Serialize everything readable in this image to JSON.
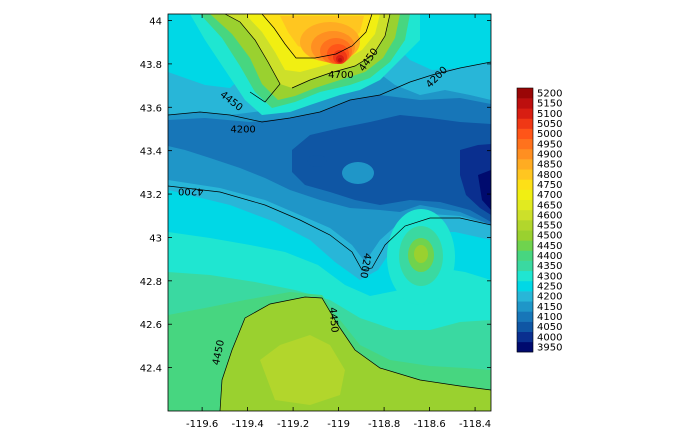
{
  "chart_data": {
    "type": "heatmap",
    "subtype": "filled-contour-map",
    "title": "",
    "xlabel": "",
    "ylabel": "",
    "xlim": [
      -119.75,
      -118.33
    ],
    "ylim": [
      42.2,
      44.03
    ],
    "x_ticks": [
      "-119.6",
      "-119.4",
      "-119.2",
      "-119",
      "-118.8",
      "-118.6",
      "-118.4"
    ],
    "y_ticks": [
      "44",
      "43.8",
      "43.6",
      "43.4",
      "43.2",
      "43",
      "42.8",
      "42.6",
      "42.4"
    ],
    "colorbar": {
      "placement": "right",
      "levels": [
        "3950",
        "4000",
        "4050",
        "4100",
        "4150",
        "4200",
        "4250",
        "4300",
        "4350",
        "4400",
        "4450",
        "4500",
        "4550",
        "4600",
        "4650",
        "4700",
        "4750",
        "4800",
        "4850",
        "4900",
        "4950",
        "5000",
        "5050",
        "5100",
        "5150",
        "5200"
      ],
      "colors": [
        "#000a6e",
        "#0a2f8f",
        "#0f56a4",
        "#1776b8",
        "#1f96c8",
        "#28b6d8",
        "#00d8e6",
        "#1fe6d1",
        "#3ad9a1",
        "#47d680",
        "#6fd34e",
        "#9ad12f",
        "#b2d62c",
        "#cde02a",
        "#e1ea20",
        "#f1ef12",
        "#fde017",
        "#ffc620",
        "#ffac22",
        "#ff8f21",
        "#ff721d",
        "#ff5518",
        "#f03815",
        "#d81e12",
        "#bd0f0e",
        "#9a0606"
      ]
    },
    "contour_labels": [
      {
        "text": "4700",
        "lon": -118.99,
        "lat": 43.75,
        "rotation": 0
      },
      {
        "text": "4450",
        "lon": -118.87,
        "lat": 43.82,
        "rotation": -55
      },
      {
        "text": "4200",
        "lon": -118.57,
        "lat": 43.74,
        "rotation": -45
      },
      {
        "text": "4450",
        "lon": -119.47,
        "lat": 43.63,
        "rotation": 38
      },
      {
        "text": "4200",
        "lon": -119.42,
        "lat": 43.5,
        "rotation": 0
      },
      {
        "text": "4200",
        "lon": -119.65,
        "lat": 43.21,
        "rotation": 180
      },
      {
        "text": "4200",
        "lon": -118.88,
        "lat": 42.87,
        "rotation": 100
      },
      {
        "text": "4450",
        "lon": -119.02,
        "lat": 42.62,
        "rotation": 85
      },
      {
        "text": "4450",
        "lon": -119.53,
        "lat": 42.47,
        "rotation": -78
      }
    ],
    "features": [
      {
        "kind": "peak",
        "lon": -119.0,
        "lat": 43.82,
        "value": 5200
      },
      {
        "kind": "local-high",
        "lon": -118.61,
        "lat": 42.93,
        "value": 4450
      },
      {
        "kind": "low",
        "lon": -118.36,
        "lat": 43.25,
        "value": 3950
      },
      {
        "kind": "plateau",
        "lon": -119.3,
        "lat": 42.45,
        "value": 4525
      }
    ],
    "grid": false
  }
}
